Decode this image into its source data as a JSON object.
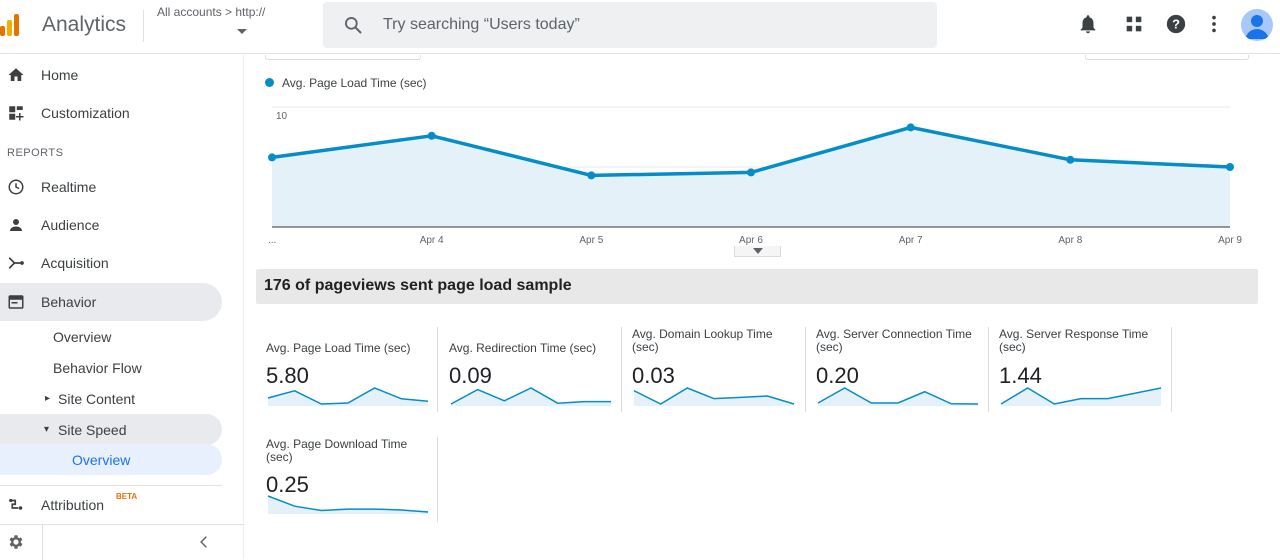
{
  "app": {
    "title": "Analytics"
  },
  "account": {
    "breadcrumb": "All accounts > http://"
  },
  "search": {
    "placeholder": "Try searching “Users today”"
  },
  "sidebar": {
    "items": [
      {
        "label": "Home",
        "icon": "home-icon"
      },
      {
        "label": "Customization",
        "icon": "dashboard-icon"
      }
    ],
    "reports_heading": "REPORTS",
    "reports": [
      {
        "label": "Realtime",
        "icon": "clock-icon"
      },
      {
        "label": "Audience",
        "icon": "person-icon"
      },
      {
        "label": "Acquisition",
        "icon": "acquisition-icon"
      },
      {
        "label": "Behavior",
        "icon": "behavior-icon"
      }
    ],
    "behavior_sub": [
      {
        "label": "Overview"
      },
      {
        "label": "Behavior Flow"
      },
      {
        "label": "Site Content",
        "marker": "▸"
      },
      {
        "label": "Site Speed",
        "marker": "▾"
      },
      {
        "label": "Overview"
      }
    ],
    "attribution": {
      "label": "Attribution",
      "badge": "BETA",
      "icon": "attribution-icon"
    }
  },
  "chart_data": {
    "type": "area",
    "series": [
      {
        "name": "Avg. Page Load Time (sec)",
        "values": [
          5.8,
          7.6,
          4.3,
          4.55,
          8.3,
          5.6,
          5.0
        ]
      }
    ],
    "categories": [
      "...",
      "Apr 4",
      "Apr 5",
      "Apr 6",
      "Apr 7",
      "Apr 8",
      "Apr 9"
    ],
    "y_ticks": [
      "10",
      "5"
    ],
    "ylim": [
      0,
      10
    ],
    "colors": {
      "line": "#058dc7",
      "fill": "#e5f1f8"
    }
  },
  "sample": {
    "text": "176 of pageviews sent page load sample"
  },
  "metrics": [
    {
      "label": "Avg. Page Load Time (sec)",
      "value": "5.80",
      "spark": [
        5.8,
        7.6,
        4.3,
        4.55,
        8.3,
        5.6,
        5.0
      ]
    },
    {
      "label": "Avg. Redirection Time (sec)",
      "value": "0.09",
      "spark": [
        0.02,
        0.2,
        0.06,
        0.22,
        0.03,
        0.05,
        0.05
      ]
    },
    {
      "label": "Avg. Domain Lookup Time (sec)",
      "value": "0.03",
      "spark": [
        0.06,
        0.01,
        0.07,
        0.03,
        0.035,
        0.04,
        0.01
      ]
    },
    {
      "label": "Avg. Server Connection Time (sec)",
      "value": "0.20",
      "spark": [
        0.05,
        0.65,
        0.05,
        0.05,
        0.5,
        0.02,
        0.01
      ]
    },
    {
      "label": "Avg. Server Response Time (sec)",
      "value": "1.44",
      "spark": [
        1.4,
        1.55,
        1.4,
        1.45,
        1.45,
        1.5,
        1.55
      ]
    },
    {
      "label": "Avg. Page Download Time (sec)",
      "value": "0.25",
      "spark": [
        0.7,
        0.35,
        0.2,
        0.25,
        0.25,
        0.22,
        0.15
      ]
    }
  ]
}
